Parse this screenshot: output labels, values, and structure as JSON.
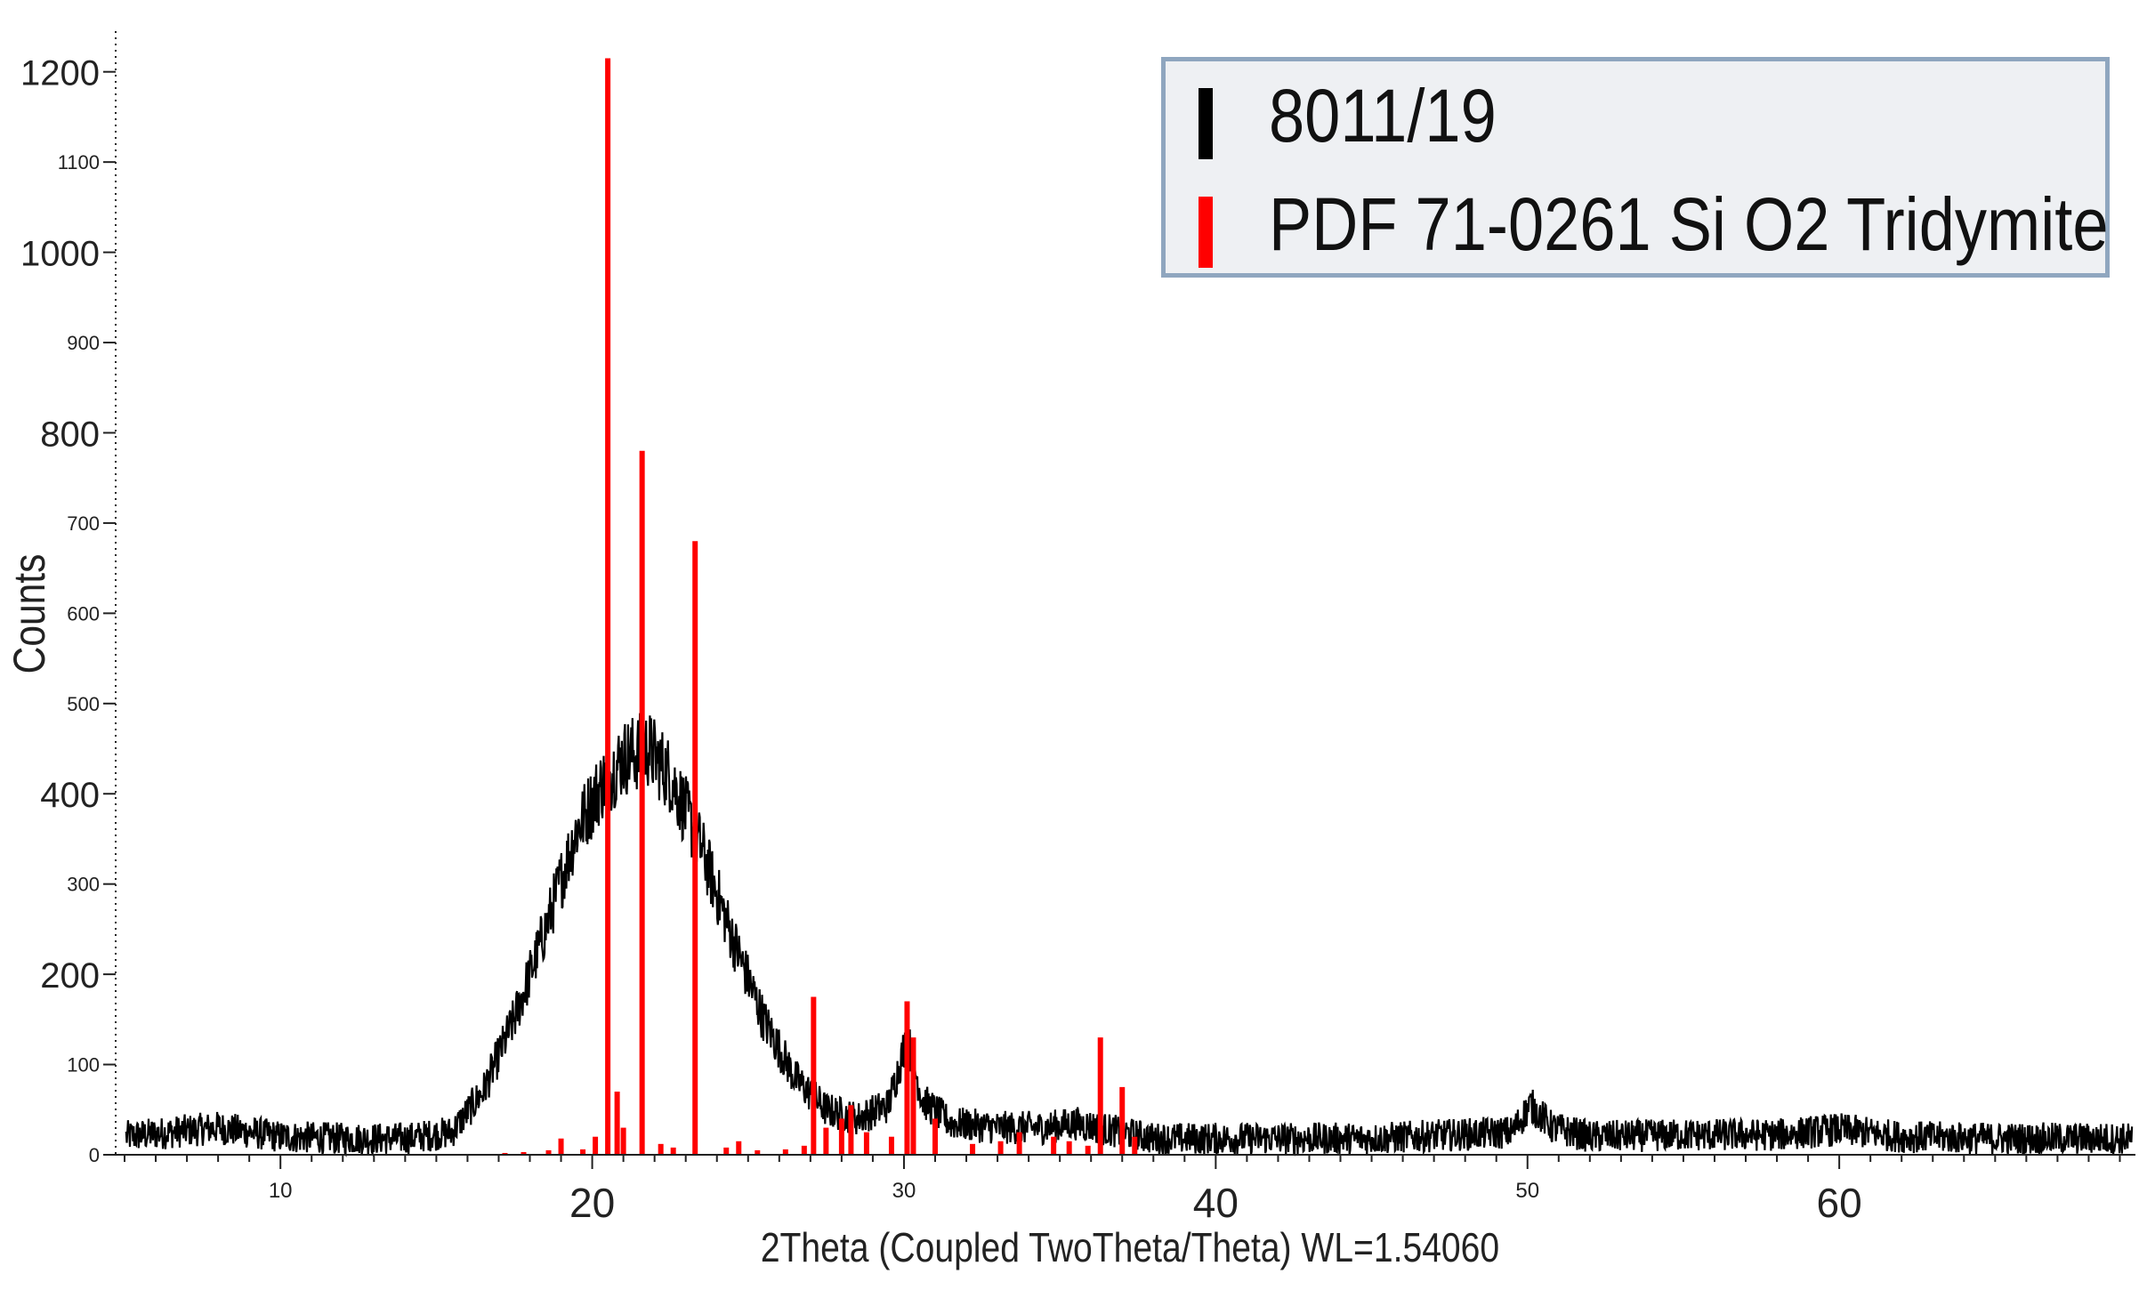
{
  "chart_data": {
    "type": "line",
    "title": "",
    "xlabel": "2Theta (Coupled TwoTheta/Theta) WL=1.54060",
    "ylabel": "Counts",
    "xlim": [
      5,
      69.5
    ],
    "ylim": [
      0,
      1250
    ],
    "x_major_ticks": [
      {
        "value": 10,
        "label": "10",
        "size": "small"
      },
      {
        "value": 20,
        "label": "20",
        "size": "large"
      },
      {
        "value": 30,
        "label": "30",
        "size": "small"
      },
      {
        "value": 40,
        "label": "40",
        "size": "large"
      },
      {
        "value": 50,
        "label": "50",
        "size": "small"
      },
      {
        "value": 60,
        "label": "60",
        "size": "large"
      }
    ],
    "y_major_ticks": [
      {
        "value": 0,
        "label": "0",
        "size": "small"
      },
      {
        "value": 100,
        "label": "100",
        "size": "small"
      },
      {
        "value": 200,
        "label": "200",
        "size": "large"
      },
      {
        "value": 300,
        "label": "300",
        "size": "small"
      },
      {
        "value": 400,
        "label": "400",
        "size": "large"
      },
      {
        "value": 500,
        "label": "500",
        "size": "small"
      },
      {
        "value": 600,
        "label": "600",
        "size": "small"
      },
      {
        "value": 700,
        "label": "700",
        "size": "small"
      },
      {
        "value": 800,
        "label": "800",
        "size": "large"
      },
      {
        "value": 900,
        "label": "900",
        "size": "small"
      },
      {
        "value": 1000,
        "label": "1000",
        "size": "large"
      },
      {
        "value": 1100,
        "label": "1100",
        "size": "small"
      },
      {
        "value": 1200,
        "label": "1200",
        "size": "large"
      }
    ],
    "grid": false,
    "legend_position": "top-right",
    "series": [
      {
        "name": "8011/19",
        "kind": "pattern",
        "color": "#000000",
        "noise_amplitude": 28,
        "x": [
          5,
          8,
          10,
          12,
          14,
          15.5,
          16.5,
          17.5,
          18.5,
          19.5,
          20.3,
          21,
          21.8,
          22.5,
          23.5,
          24.5,
          25.5,
          26.5,
          27.5,
          28.5,
          29.5,
          30.1,
          30.6,
          31.5,
          33,
          34.5,
          35.5,
          36.5,
          38,
          40,
          45,
          49.5,
          50.1,
          50.8,
          52,
          55,
          58,
          60,
          62,
          65,
          69.5
        ],
        "y": [
          20,
          30,
          20,
          18,
          18,
          25,
          70,
          150,
          250,
          360,
          410,
          440,
          450,
          420,
          340,
          240,
          150,
          85,
          50,
          40,
          55,
          130,
          60,
          35,
          30,
          30,
          35,
          28,
          18,
          18,
          18,
          25,
          55,
          30,
          20,
          22,
          22,
          28,
          20,
          18,
          18
        ]
      },
      {
        "name": "PDF 71-0261 Si O2 Tridymite",
        "kind": "sticks",
        "color": "#ff0000",
        "x": [
          17.2,
          17.8,
          18.6,
          19.0,
          19.7,
          20.1,
          20.5,
          20.8,
          21.0,
          21.6,
          22.2,
          22.6,
          23.3,
          24.3,
          24.7,
          25.3,
          26.2,
          26.8,
          27.1,
          27.5,
          28.0,
          28.3,
          28.8,
          29.6,
          30.1,
          30.3,
          31.0,
          32.2,
          33.1,
          33.7,
          34.8,
          35.3,
          35.9,
          36.3,
          37.0,
          37.4
        ],
        "y": [
          2,
          3,
          5,
          18,
          6,
          20,
          1215,
          70,
          30,
          780,
          12,
          8,
          680,
          8,
          15,
          5,
          6,
          10,
          175,
          30,
          40,
          55,
          25,
          20,
          170,
          130,
          40,
          12,
          15,
          25,
          20,
          15,
          10,
          130,
          75,
          20
        ]
      }
    ]
  }
}
